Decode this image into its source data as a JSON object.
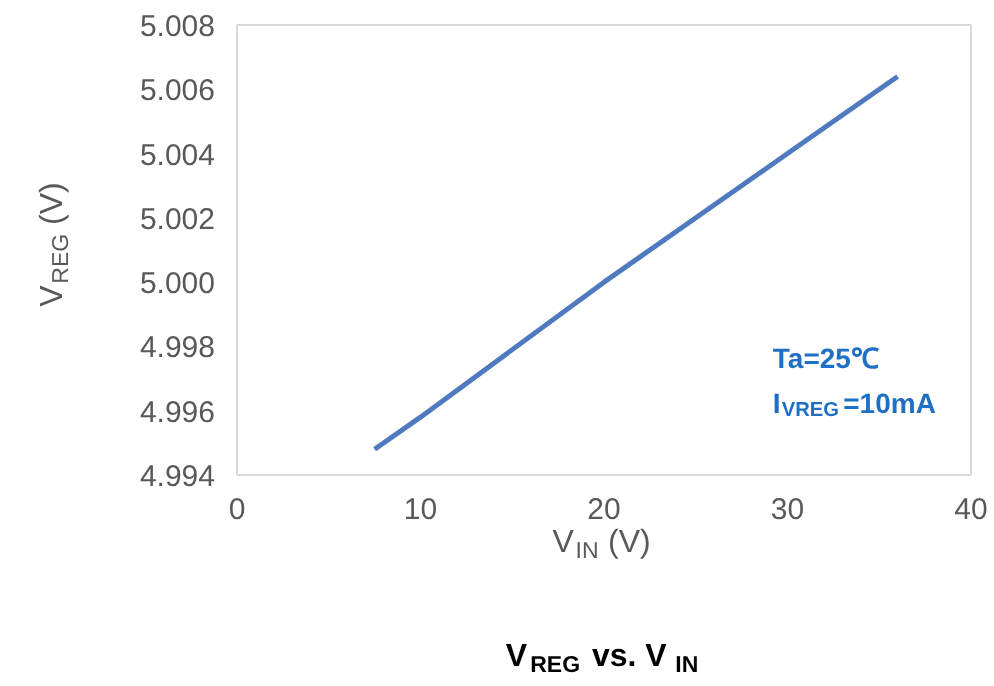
{
  "chart_data": {
    "type": "line",
    "title": "V$_{REG}$ vs. V$_{IN}$",
    "xlabel": "V$_{IN}$ (V)",
    "ylabel": "V$_{REG}$ (V)",
    "x": [
      7.5,
      10,
      20,
      30,
      36
    ],
    "series": [
      {
        "color": "#4f7ac0",
        "values": [
          4.9948,
          4.9958,
          5.0,
          5.004,
          5.0064
        ]
      }
    ],
    "xlim": [
      0,
      40
    ],
    "ylim": [
      4.994,
      5.008
    ],
    "xticks": [
      0,
      10,
      20,
      30,
      40
    ],
    "yticks": [
      4.994,
      4.996,
      4.998,
      {
        "value": 5.0,
        "label": "5.000"
      },
      5.002,
      5.004,
      5.006,
      5.008
    ],
    "grid": false,
    "annotations": [
      "Ta=25℃",
      "I$_{VREG}$=10mA"
    ]
  }
}
